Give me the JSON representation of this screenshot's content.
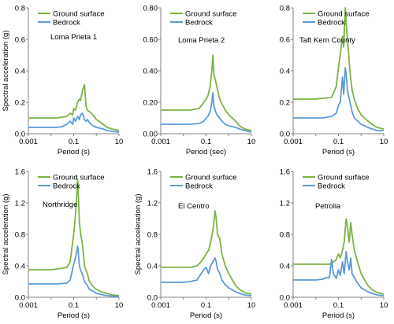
{
  "figure": {
    "colors": {
      "ground": "#7cb342",
      "bedrock": "#5b9bd5",
      "axis": "#808080"
    },
    "legend": [
      "Ground surface",
      "Bedrock"
    ]
  },
  "chart_data": [
    {
      "type": "line",
      "title": "Loma Prieta 1",
      "xlabel": "Period (s)",
      "ylabel": "Spectral acceleration (g)",
      "x_scale": "log",
      "xlim": [
        0.001,
        10
      ],
      "ylim": [
        0,
        0.8
      ],
      "x_ticks": [
        "0.001",
        "0.1",
        "10"
      ],
      "y_ticks": [
        "0.0",
        "0.2",
        "0.4",
        "0.6",
        "0.8"
      ],
      "x": [
        0.001,
        0.01,
        0.02,
        0.03,
        0.05,
        0.07,
        0.09,
        0.1,
        0.12,
        0.15,
        0.18,
        0.2,
        0.25,
        0.3,
        0.35,
        0.4,
        0.5,
        0.7,
        1,
        2,
        3,
        5,
        10
      ],
      "series": [
        {
          "name": "Ground surface",
          "values": [
            0.1,
            0.1,
            0.1,
            0.105,
            0.11,
            0.13,
            0.12,
            0.16,
            0.15,
            0.2,
            0.22,
            0.21,
            0.28,
            0.31,
            0.18,
            0.15,
            0.14,
            0.12,
            0.09,
            0.06,
            0.04,
            0.03,
            0.02
          ]
        },
        {
          "name": "Bedrock",
          "values": [
            0.04,
            0.04,
            0.04,
            0.045,
            0.06,
            0.08,
            0.06,
            0.1,
            0.08,
            0.11,
            0.09,
            0.12,
            0.13,
            0.09,
            0.08,
            0.09,
            0.07,
            0.05,
            0.04,
            0.03,
            0.02,
            0.015,
            0.01
          ]
        }
      ]
    },
    {
      "type": "line",
      "title": "Loma Prieta 2",
      "xlabel": "Period (sec)",
      "ylabel": "",
      "x_scale": "log",
      "xlim": [
        0.001,
        10
      ],
      "ylim": [
        0,
        0.8
      ],
      "x_ticks": [
        "0.001",
        "0.1",
        "10"
      ],
      "y_ticks": [
        "0.00",
        "0.20",
        "0.40",
        "0.60",
        "0.80"
      ],
      "x": [
        0.001,
        0.01,
        0.02,
        0.05,
        0.08,
        0.1,
        0.12,
        0.15,
        0.18,
        0.2,
        0.22,
        0.25,
        0.3,
        0.4,
        0.5,
        0.7,
        1,
        2,
        3,
        5,
        10
      ],
      "series": [
        {
          "name": "Ground surface",
          "values": [
            0.15,
            0.15,
            0.15,
            0.16,
            0.2,
            0.22,
            0.24,
            0.3,
            0.4,
            0.5,
            0.38,
            0.35,
            0.3,
            0.22,
            0.19,
            0.15,
            0.12,
            0.08,
            0.05,
            0.03,
            0.02
          ]
        },
        {
          "name": "Bedrock",
          "values": [
            0.06,
            0.06,
            0.06,
            0.065,
            0.08,
            0.1,
            0.11,
            0.14,
            0.2,
            0.26,
            0.18,
            0.15,
            0.12,
            0.1,
            0.08,
            0.06,
            0.05,
            0.04,
            0.03,
            0.02,
            0.01
          ]
        }
      ]
    },
    {
      "type": "line",
      "title": "Taft Kern County",
      "xlabel": "Period (s)",
      "ylabel": "",
      "x_scale": "log",
      "xlim": [
        0.001,
        10
      ],
      "ylim": [
        0,
        0.8
      ],
      "x_ticks": [
        "0.001",
        "0.1",
        "10"
      ],
      "y_ticks": [
        "0.0",
        "0.2",
        "0.4",
        "0.6",
        "0.8"
      ],
      "x": [
        0.001,
        0.01,
        0.02,
        0.05,
        0.08,
        0.1,
        0.12,
        0.15,
        0.17,
        0.2,
        0.22,
        0.25,
        0.28,
        0.3,
        0.35,
        0.4,
        0.5,
        0.7,
        1,
        2,
        3,
        5,
        10
      ],
      "series": [
        {
          "name": "Ground surface",
          "values": [
            0.22,
            0.22,
            0.225,
            0.23,
            0.3,
            0.42,
            0.5,
            0.62,
            0.55,
            0.8,
            0.7,
            0.6,
            0.52,
            0.45,
            0.35,
            0.28,
            0.22,
            0.16,
            0.12,
            0.08,
            0.06,
            0.04,
            0.03
          ]
        },
        {
          "name": "Bedrock",
          "values": [
            0.1,
            0.1,
            0.1,
            0.11,
            0.13,
            0.18,
            0.2,
            0.36,
            0.25,
            0.42,
            0.38,
            0.28,
            0.24,
            0.22,
            0.18,
            0.14,
            0.1,
            0.08,
            0.06,
            0.04,
            0.03,
            0.02,
            0.02
          ]
        }
      ]
    },
    {
      "type": "line",
      "title": "Northridge",
      "xlabel": "Period (s)",
      "ylabel": "Spectral acceleration (g)",
      "x_scale": "log",
      "xlim": [
        0.001,
        10
      ],
      "ylim": [
        0,
        1.6
      ],
      "x_ticks": [
        "0.001",
        "0.1",
        "10"
      ],
      "y_ticks": [
        "0.0",
        "0.4",
        "0.8",
        "1.2",
        "1.6"
      ],
      "x": [
        0.001,
        0.01,
        0.02,
        0.05,
        0.07,
        0.1,
        0.12,
        0.15,
        0.18,
        0.2,
        0.25,
        0.3,
        0.4,
        0.5,
        0.7,
        1,
        2,
        3,
        5,
        10
      ],
      "series": [
        {
          "name": "Ground surface",
          "values": [
            0.35,
            0.35,
            0.36,
            0.38,
            0.45,
            0.8,
            1.05,
            1.5,
            0.95,
            0.82,
            0.65,
            0.4,
            0.3,
            0.2,
            0.14,
            0.1,
            0.06,
            0.05,
            0.03,
            0.02
          ]
        },
        {
          "name": "Bedrock",
          "values": [
            0.17,
            0.17,
            0.17,
            0.18,
            0.22,
            0.42,
            0.5,
            0.65,
            0.4,
            0.35,
            0.28,
            0.2,
            0.15,
            0.1,
            0.08,
            0.05,
            0.03,
            0.02,
            0.015,
            0.01
          ]
        }
      ]
    },
    {
      "type": "line",
      "title": "El Centro",
      "xlabel": "Period (s)",
      "ylabel": "Spectral acceleration (g)",
      "x_scale": "log",
      "xlim": [
        0.001,
        10
      ],
      "ylim": [
        0,
        1.6
      ],
      "x_ticks": [
        "0.001",
        "0.1",
        "10"
      ],
      "y_ticks": [
        "0.0",
        "0.4",
        "0.8",
        "1.2",
        "1.6"
      ],
      "x": [
        0.001,
        0.01,
        0.02,
        0.04,
        0.06,
        0.08,
        0.1,
        0.13,
        0.16,
        0.2,
        0.25,
        0.28,
        0.32,
        0.4,
        0.5,
        0.7,
        1,
        2,
        3,
        5,
        10
      ],
      "series": [
        {
          "name": "Ground surface",
          "values": [
            0.38,
            0.38,
            0.38,
            0.4,
            0.45,
            0.5,
            0.55,
            0.6,
            0.7,
            0.85,
            1.1,
            1.0,
            0.8,
            0.75,
            0.55,
            0.4,
            0.3,
            0.15,
            0.1,
            0.06,
            0.04
          ]
        },
        {
          "name": "Bedrock",
          "values": [
            0.19,
            0.19,
            0.2,
            0.22,
            0.3,
            0.35,
            0.38,
            0.3,
            0.4,
            0.45,
            0.5,
            0.45,
            0.36,
            0.3,
            0.22,
            0.16,
            0.12,
            0.07,
            0.05,
            0.03,
            0.02
          ]
        }
      ]
    },
    {
      "type": "line",
      "title": "Petrolia",
      "xlabel": "Period (s)",
      "ylabel": "",
      "x_scale": "log",
      "xlim": [
        0.001,
        10
      ],
      "ylim": [
        0,
        1.6
      ],
      "x_ticks": [
        "0.001",
        "0.1",
        "10"
      ],
      "y_ticks": [
        "0.0",
        "0.4",
        "0.8",
        "1.2",
        "1.6"
      ],
      "x": [
        0.001,
        0.01,
        0.02,
        0.03,
        0.04,
        0.05,
        0.06,
        0.08,
        0.1,
        0.12,
        0.15,
        0.18,
        0.22,
        0.25,
        0.3,
        0.35,
        0.4,
        0.5,
        0.7,
        1,
        2,
        3,
        5,
        10
      ],
      "series": [
        {
          "name": "Ground surface",
          "values": [
            0.42,
            0.42,
            0.42,
            0.42,
            0.42,
            0.43,
            0.45,
            0.48,
            0.55,
            0.5,
            0.6,
            0.7,
            1.0,
            0.9,
            0.7,
            0.95,
            0.8,
            0.6,
            0.45,
            0.3,
            0.15,
            0.1,
            0.06,
            0.04
          ]
        },
        {
          "name": "Bedrock",
          "values": [
            0.22,
            0.22,
            0.23,
            0.25,
            0.25,
            0.48,
            0.3,
            0.24,
            0.35,
            0.28,
            0.45,
            0.3,
            0.58,
            0.45,
            0.35,
            0.5,
            0.3,
            0.25,
            0.18,
            0.12,
            0.07,
            0.05,
            0.03,
            0.02
          ]
        }
      ]
    }
  ]
}
